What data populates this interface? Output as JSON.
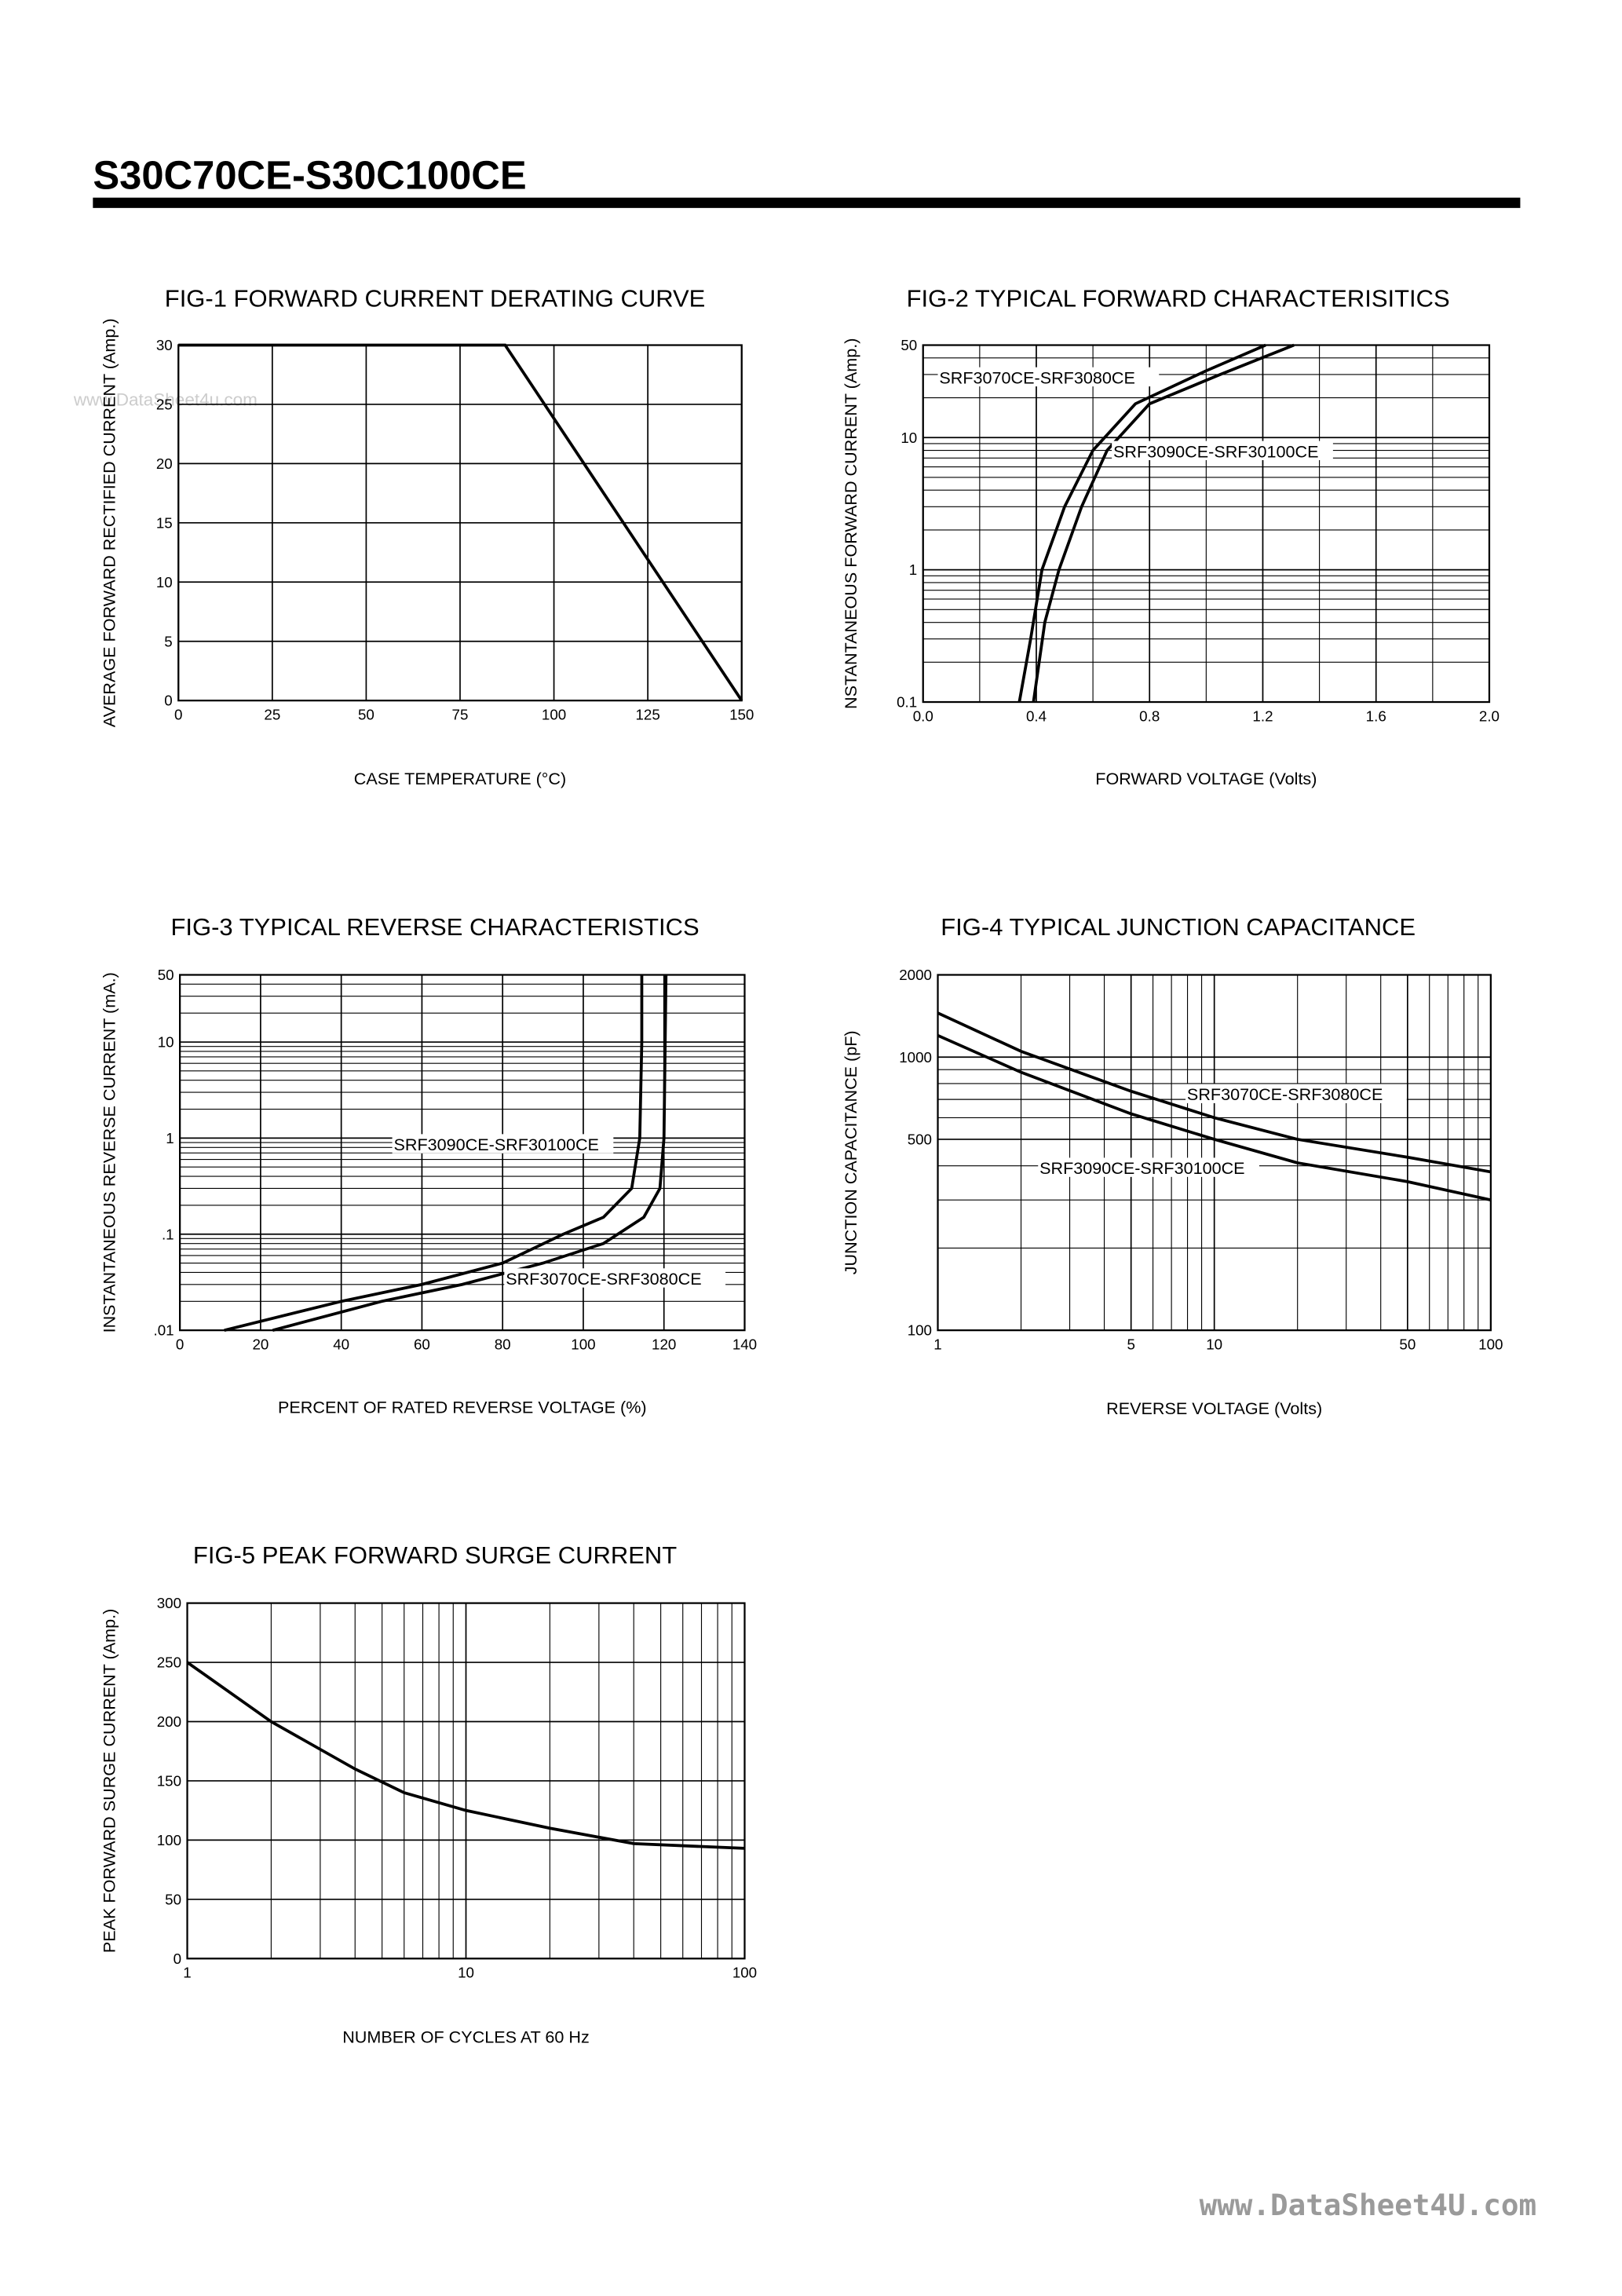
{
  "header": {
    "title": "S30C70CE-S30C100CE"
  },
  "watermarks": [
    "www.DataSheet4u.com",
    "www.DataSheet4U.com"
  ],
  "chart_data": [
    {
      "type": "line",
      "title": "FIG-1 FORWARD CURRENT DERATING CURVE",
      "x_label": "CASE TEMPERATURE (°C)",
      "y_label": "AVERAGE FORWARD RECTIFIED CURRENT (Amp.)",
      "xlim": [
        0,
        150
      ],
      "xticks": [
        0,
        25,
        50,
        75,
        100,
        125,
        150
      ],
      "ylim": [
        0,
        30
      ],
      "yticks": [
        0,
        5,
        10,
        15,
        20,
        25,
        30
      ],
      "grid": true,
      "series": [
        {
          "color": "#000000",
          "x": [
            0,
            87,
            150
          ],
          "values": [
            30,
            30,
            0
          ]
        }
      ]
    },
    {
      "type": "line",
      "title": "FIG-2 TYPICAL FORWARD CHARACTERISITICS",
      "x_label": "FORWARD VOLTAGE (Volts)",
      "y_label": "NSTANTANEOUS FORWARD CURRENT (Amp.)",
      "xlim": [
        0,
        2.0
      ],
      "xticks": [
        {
          "value": 0,
          "label": "0.0"
        },
        0.4,
        0.8,
        1.2,
        1.6,
        {
          "value": 2,
          "label": "2.0"
        }
      ],
      "ylim": [
        0.1,
        50
      ],
      "yticks": [
        0.1,
        1,
        10,
        50
      ],
      "yscale": "log",
      "grid": true,
      "series": [
        {
          "name": "SRF3070CE-SRF3080CE",
          "color": "#000000",
          "x": [
            0.34,
            0.38,
            0.42,
            0.5,
            0.6,
            0.75,
            1.0,
            1.21
          ],
          "values": [
            0.1,
            0.3,
            1,
            3,
            8,
            18,
            32,
            50
          ]
        },
        {
          "name": "SRF3090CE-SRF30100CE",
          "color": "#000000",
          "x": [
            0.39,
            0.43,
            0.48,
            0.56,
            0.65,
            0.8,
            1.05,
            1.31
          ],
          "values": [
            0.1,
            0.4,
            1,
            3,
            8,
            18,
            30,
            50
          ]
        }
      ]
    },
    {
      "type": "line",
      "title": "FIG-3 TYPICAL REVERSE CHARACTERISTICS",
      "x_label": "PERCENT OF RATED REVERSE VOLTAGE (%)",
      "y_label": "INSTANTANEOUS REVERSE CURRENT (mA.)",
      "xlim": [
        0,
        140
      ],
      "xticks": [
        0,
        20,
        40,
        60,
        80,
        100,
        120,
        140
      ],
      "ylim": [
        0.01,
        50
      ],
      "yticks": [
        {
          "value": 0.01,
          "label": ".01"
        },
        {
          "value": 0.1,
          "label": ".1"
        },
        1,
        10,
        50
      ],
      "yscale": "log",
      "grid": true,
      "series": [
        {
          "name": "SRF3090CE-SRF30100CE",
          "color": "#000000",
          "x": [
            11,
            40,
            60,
            80,
            95,
            105,
            112,
            114,
            114.5,
            114.5
          ],
          "values": [
            0.01,
            0.02,
            0.03,
            0.05,
            0.1,
            0.15,
            0.3,
            1,
            10,
            50
          ]
        },
        {
          "name": "SRF3070CE-SRF3080CE",
          "color": "#000000",
          "x": [
            23,
            50,
            70,
            90,
            105,
            115,
            119,
            120,
            120.5
          ],
          "values": [
            0.01,
            0.02,
            0.03,
            0.05,
            0.08,
            0.15,
            0.3,
            1,
            50
          ]
        }
      ]
    },
    {
      "type": "line",
      "title": "FIG-4 TYPICAL JUNCTION CAPACITANCE",
      "x_label": "REVERSE VOLTAGE (Volts)",
      "y_label": "JUNCTION CAPACITANCE (pF)",
      "xlim": [
        1,
        100
      ],
      "xticks": [
        1,
        5,
        10,
        50,
        100
      ],
      "xscale": "log",
      "ylim": [
        100,
        2000
      ],
      "yticks": [
        100,
        500,
        1000,
        2000
      ],
      "yscale": "log",
      "grid": true,
      "series": [
        {
          "name": "SRF3070CE-SRF3080CE",
          "color": "#000000",
          "x": [
            1,
            2,
            5,
            10,
            20,
            50,
            100
          ],
          "values": [
            1450,
            1050,
            750,
            600,
            500,
            430,
            380
          ]
        },
        {
          "name": "SRF3090CE-SRF30100CE",
          "color": "#000000",
          "x": [
            1,
            2,
            5,
            10,
            20,
            50,
            100
          ],
          "values": [
            1200,
            880,
            620,
            500,
            410,
            350,
            300
          ]
        }
      ]
    },
    {
      "type": "line",
      "title": "FIG-5 PEAK FORWARD SURGE CURRENT",
      "x_label": "NUMBER OF CYCLES AT 60 Hz",
      "y_label": "PEAK FORWARD SURGE   CURRENT (Amp.)",
      "xlim": [
        1,
        100
      ],
      "xticks": [
        1,
        10,
        100
      ],
      "xscale": "log",
      "ylim": [
        0,
        300
      ],
      "yticks": [
        0,
        50,
        100,
        150,
        200,
        250,
        300
      ],
      "grid": true,
      "series": [
        {
          "color": "#000000",
          "x": [
            1,
            2,
            4,
            6,
            10,
            20,
            40,
            100
          ],
          "values": [
            250,
            200,
            160,
            140,
            125,
            110,
            97,
            93
          ]
        }
      ]
    }
  ]
}
